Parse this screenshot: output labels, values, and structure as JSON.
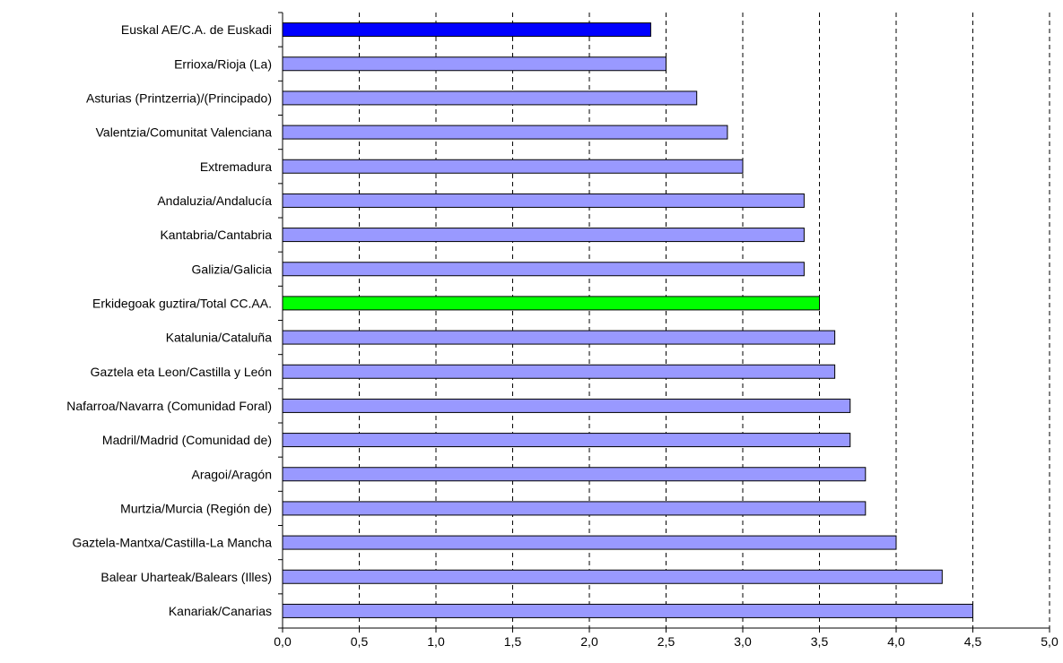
{
  "chart_data": {
    "type": "bar",
    "orientation": "horizontal",
    "categories": [
      "Euskal AE/C.A. de Euskadi",
      "Errioxa/Rioja (La)",
      "Asturias (Printzerria)/(Principado)",
      "Valentzia/Comunitat Valenciana",
      "Extremadura",
      "Andaluzia/Andalucía",
      "Kantabria/Cantabria",
      "Galizia/Galicia",
      "Erkidegoak guztira/Total CC.AA.",
      "Katalunia/Cataluña",
      "Gaztela eta Leon/Castilla y León",
      "Nafarroa/Navarra (Comunidad Foral)",
      "Madril/Madrid (Comunidad de)",
      "Aragoi/Aragón",
      "Murtzia/Murcia (Región de)",
      "Gaztela-Mantxa/Castilla-La Mancha",
      "Balear Uharteak/Balears (Illes)",
      "Kanariak/Canarias"
    ],
    "values": [
      2.4,
      2.5,
      2.7,
      2.9,
      3.0,
      3.4,
      3.4,
      3.4,
      3.5,
      3.6,
      3.6,
      3.7,
      3.7,
      3.8,
      3.8,
      4.0,
      4.3,
      4.5
    ],
    "bar_colors": [
      "#0000ff",
      "#9999ff",
      "#9999ff",
      "#9999ff",
      "#9999ff",
      "#9999ff",
      "#9999ff",
      "#9999ff",
      "#00ff00",
      "#9999ff",
      "#9999ff",
      "#9999ff",
      "#9999ff",
      "#9999ff",
      "#9999ff",
      "#9999ff",
      "#9999ff",
      "#9999ff"
    ],
    "xlim": [
      0,
      5
    ],
    "xticks": [
      "0,0",
      "0,5",
      "1,0",
      "1,5",
      "2,0",
      "2,5",
      "3,0",
      "3,5",
      "4,0",
      "4,5",
      "5,0"
    ],
    "grid": "vertical dashed",
    "title": "",
    "xlabel": "",
    "ylabel": ""
  }
}
